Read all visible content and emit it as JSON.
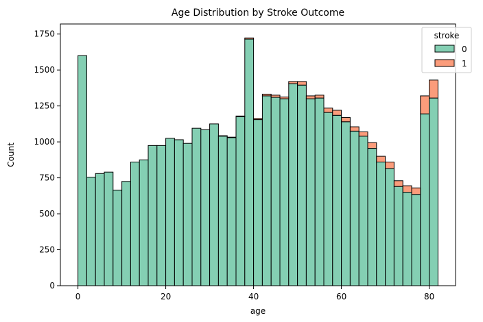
{
  "chart_data": {
    "type": "bar",
    "title": "Age Distribution by Stroke Outcome",
    "xlabel": "age",
    "ylabel": "Count",
    "xlim": [
      -4,
      86
    ],
    "ylim": [
      0,
      1820
    ],
    "xticks": [
      0,
      20,
      40,
      60,
      80
    ],
    "yticks": [
      0,
      250,
      500,
      750,
      1000,
      1250,
      1500,
      1750
    ],
    "bin_width": 2.0,
    "bins_start": [
      0,
      2,
      4,
      6,
      8,
      10,
      12,
      14,
      16,
      18,
      20,
      22,
      24,
      26,
      28,
      30,
      32,
      34,
      36,
      38,
      40,
      42,
      44,
      46,
      48,
      50,
      52,
      54,
      56,
      58,
      60,
      62,
      64,
      66,
      68,
      70,
      72,
      74,
      76,
      78,
      80
    ],
    "stacked": true,
    "legend": {
      "title": "stroke",
      "position": "top-right"
    },
    "grid": false,
    "series": [
      {
        "name": "0",
        "color": "#84cfb3",
        "values": [
          1600,
          755,
          780,
          790,
          665,
          725,
          860,
          875,
          975,
          975,
          1025,
          1015,
          990,
          1095,
          1085,
          1125,
          1040,
          1030,
          1175,
          1715,
          1155,
          1320,
          1310,
          1300,
          1405,
          1395,
          1300,
          1305,
          1205,
          1185,
          1140,
          1075,
          1040,
          955,
          860,
          815,
          690,
          650,
          635,
          1195,
          1305
        ]
      },
      {
        "name": "1",
        "color": "#fb9c7b",
        "values": [
          0,
          0,
          0,
          0,
          0,
          0,
          0,
          0,
          0,
          0,
          0,
          0,
          0,
          0,
          0,
          0,
          3,
          3,
          5,
          8,
          8,
          12,
          15,
          12,
          15,
          25,
          20,
          20,
          30,
          35,
          30,
          30,
          30,
          40,
          40,
          45,
          40,
          45,
          45,
          125,
          125
        ]
      }
    ]
  }
}
